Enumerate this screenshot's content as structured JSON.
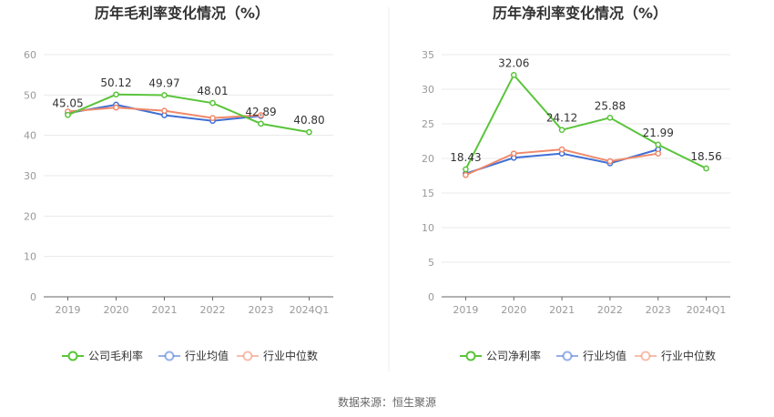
{
  "colors": {
    "company": "#5ac43a",
    "industry_avg": "#3f6fd4",
    "industry_median": "#f0896a",
    "axis": "#999999",
    "grid": "#e8e8e8",
    "divider": "#eeeeee",
    "title": "#333333"
  },
  "footer": {
    "source": "数据来源：恒生聚源"
  },
  "chart_data": [
    {
      "type": "line",
      "title": "历年毛利率变化情况（%）",
      "categories": [
        "2019",
        "2020",
        "2021",
        "2022",
        "2023",
        "2024Q1"
      ],
      "ylim": [
        0,
        60
      ],
      "yticks": [
        0,
        10,
        20,
        30,
        40,
        50,
        60
      ],
      "xlabel": "",
      "ylabel": "",
      "grid": true,
      "legend_position": "bottom",
      "series": [
        {
          "key": "company",
          "name": "公司毛利率",
          "labeled": true,
          "values": [
            45.05,
            50.12,
            49.97,
            48.01,
            42.89,
            40.8
          ],
          "labels": [
            "45.05",
            "50.12",
            "49.97",
            "48.01",
            "42.89",
            "40.80"
          ]
        },
        {
          "key": "industry_avg",
          "name": "行业均值",
          "labeled": false,
          "values": [
            45.5,
            47.6,
            45.0,
            43.6,
            44.8,
            null
          ]
        },
        {
          "key": "industry_median",
          "name": "行业中位数",
          "labeled": false,
          "values": [
            45.9,
            46.9,
            46.1,
            44.3,
            45.0,
            null
          ]
        }
      ]
    },
    {
      "type": "line",
      "title": "历年净利率变化情况（%）",
      "categories": [
        "2019",
        "2020",
        "2021",
        "2022",
        "2023",
        "2024Q1"
      ],
      "ylim": [
        0,
        35
      ],
      "yticks": [
        0,
        5,
        10,
        15,
        20,
        25,
        30,
        35
      ],
      "xlabel": "",
      "ylabel": "",
      "grid": true,
      "legend_position": "bottom",
      "series": [
        {
          "key": "company",
          "name": "公司净利率",
          "labeled": true,
          "values": [
            18.43,
            32.06,
            24.12,
            25.88,
            21.99,
            18.56
          ],
          "labels": [
            "18.43",
            "32.06",
            "24.12",
            "25.88",
            "21.99",
            "18.56"
          ]
        },
        {
          "key": "industry_avg",
          "name": "行业均值",
          "labeled": false,
          "values": [
            17.8,
            20.1,
            20.7,
            19.3,
            21.3,
            null
          ]
        },
        {
          "key": "industry_median",
          "name": "行业中位数",
          "labeled": false,
          "values": [
            17.6,
            20.7,
            21.3,
            19.6,
            20.7,
            null
          ]
        }
      ]
    }
  ]
}
